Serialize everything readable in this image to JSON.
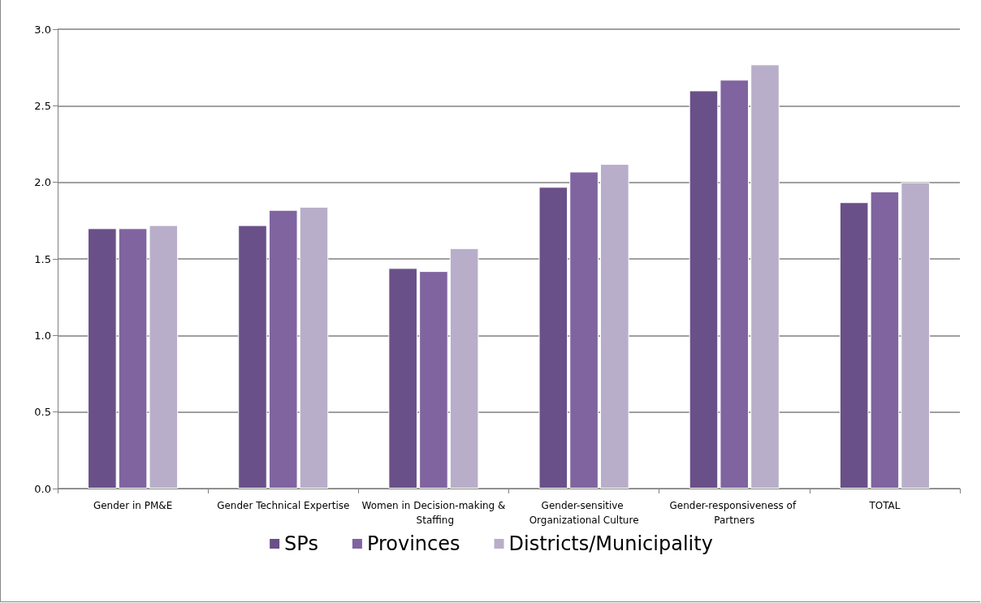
{
  "chart_data": {
    "type": "bar",
    "categories": [
      "Gender in PM&E",
      "Gender Technical Expertise",
      "Women in Decision-making & Staffing",
      "Gender-sensitive Organizational Culture",
      "Gender-responsiveness of Partners",
      "TOTAL"
    ],
    "series": [
      {
        "name": "SPs",
        "color": "#6a5088",
        "values": [
          1.7,
          1.72,
          1.44,
          1.97,
          2.6,
          1.87
        ]
      },
      {
        "name": "Provinces",
        "color": "#8064a0",
        "values": [
          1.7,
          1.82,
          1.42,
          2.07,
          2.67,
          1.94
        ]
      },
      {
        "name": "Districts/Municipality",
        "color": "#b8aeca",
        "values": [
          1.72,
          1.84,
          1.57,
          2.12,
          2.77,
          2.0
        ]
      }
    ],
    "ylim": [
      0,
      3
    ],
    "yticks": [
      {
        "value": 0,
        "label": "0.0"
      },
      0.5,
      {
        "value": 1,
        "label": "1.0"
      },
      1.5,
      {
        "value": 2,
        "label": "2.0"
      },
      2.5,
      {
        "value": 3,
        "label": "3.0"
      }
    ],
    "grid": "y",
    "legend": "bottom"
  }
}
